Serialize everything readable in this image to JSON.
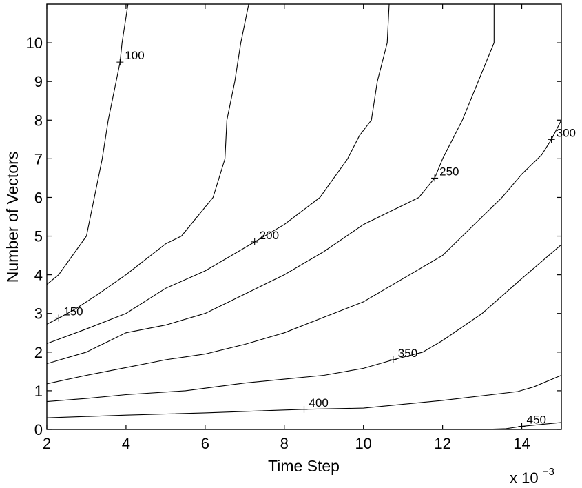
{
  "chart_data": {
    "type": "contour",
    "xlabel": "Time Step",
    "ylabel": "Number of Vectors",
    "x_multiplier_base": "x 10",
    "x_multiplier_exp": "−3",
    "xlim": [
      2,
      15
    ],
    "ylim": [
      0,
      11
    ],
    "xticks": [
      2,
      4,
      6,
      8,
      10,
      12,
      14
    ],
    "yticks": [
      0,
      1,
      2,
      3,
      4,
      5,
      6,
      7,
      8,
      9,
      10
    ],
    "grid": false,
    "contours": [
      {
        "level": 100,
        "label": "100",
        "label_at": [
          3.85,
          9.5
        ],
        "points": [
          [
            2,
            3.75
          ],
          [
            2.3,
            4.0
          ],
          [
            3.0,
            5.0
          ],
          [
            3.4,
            7.0
          ],
          [
            3.55,
            8.0
          ],
          [
            3.75,
            9.0
          ],
          [
            3.85,
            9.5
          ],
          [
            3.9,
            10.0
          ],
          [
            4.05,
            11.0
          ]
        ]
      },
      {
        "level": 150,
        "label": "150",
        "label_at": [
          2.3,
          2.88
        ],
        "points": [
          [
            2,
            2.72
          ],
          [
            2.3,
            2.88
          ],
          [
            2.7,
            3.1
          ],
          [
            3.3,
            3.5
          ],
          [
            4.0,
            4.0
          ],
          [
            5.0,
            4.8
          ],
          [
            5.4,
            5.0
          ],
          [
            6.2,
            6.0
          ],
          [
            6.5,
            7.0
          ],
          [
            6.55,
            8.0
          ],
          [
            6.75,
            9.0
          ],
          [
            6.9,
            10.0
          ],
          [
            7.1,
            11.0
          ]
        ]
      },
      {
        "level": 200,
        "label": "200",
        "label_at": [
          7.25,
          4.85
        ],
        "points": [
          [
            2,
            2.22
          ],
          [
            3.0,
            2.6
          ],
          [
            4.0,
            3.0
          ],
          [
            5.0,
            3.65
          ],
          [
            6.0,
            4.1
          ],
          [
            7.25,
            4.85
          ],
          [
            8.0,
            5.3
          ],
          [
            8.9,
            6.0
          ],
          [
            9.6,
            7.0
          ],
          [
            9.9,
            7.6
          ],
          [
            10.2,
            8.0
          ],
          [
            10.35,
            9.0
          ],
          [
            10.6,
            10.0
          ],
          [
            10.65,
            11.0
          ]
        ]
      },
      {
        "level": 250,
        "label": "250",
        "label_at": [
          11.8,
          6.5
        ],
        "points": [
          [
            2,
            1.7
          ],
          [
            3.0,
            2.0
          ],
          [
            4.0,
            2.5
          ],
          [
            5.0,
            2.7
          ],
          [
            6.0,
            3.0
          ],
          [
            7.0,
            3.5
          ],
          [
            8.0,
            4.0
          ],
          [
            9.0,
            4.6
          ],
          [
            10.0,
            5.3
          ],
          [
            11.4,
            6.0
          ],
          [
            11.8,
            6.5
          ],
          [
            12.0,
            7.0
          ],
          [
            12.5,
            8.0
          ],
          [
            13.3,
            10.0
          ],
          [
            13.3,
            11.0
          ]
        ]
      },
      {
        "level": 300,
        "label": "300",
        "label_at": [
          14.75,
          7.5
        ],
        "points": [
          [
            2,
            1.18
          ],
          [
            3.0,
            1.4
          ],
          [
            4.0,
            1.6
          ],
          [
            5.0,
            1.8
          ],
          [
            6.0,
            1.95
          ],
          [
            7.0,
            2.2
          ],
          [
            8.0,
            2.5
          ],
          [
            9.0,
            2.9
          ],
          [
            10.0,
            3.3
          ],
          [
            11.0,
            3.9
          ],
          [
            12.0,
            4.5
          ],
          [
            12.5,
            5.0
          ],
          [
            13.0,
            5.5
          ],
          [
            13.5,
            6.0
          ],
          [
            14.0,
            6.6
          ],
          [
            14.5,
            7.1
          ],
          [
            14.75,
            7.5
          ],
          [
            15.0,
            8.0
          ]
        ]
      },
      {
        "level": 350,
        "label": "350",
        "label_at": [
          10.75,
          1.8
        ],
        "points": [
          [
            2,
            0.72
          ],
          [
            3.0,
            0.8
          ],
          [
            4.0,
            0.9
          ],
          [
            5.5,
            1.0
          ],
          [
            7.0,
            1.2
          ],
          [
            8.0,
            1.3
          ],
          [
            9.0,
            1.4
          ],
          [
            10.0,
            1.58
          ],
          [
            10.75,
            1.8
          ],
          [
            11.5,
            2.0
          ],
          [
            12.0,
            2.3
          ],
          [
            13.0,
            3.0
          ],
          [
            14.0,
            3.9
          ],
          [
            15.0,
            4.78
          ]
        ]
      },
      {
        "level": 400,
        "label": "400",
        "label_at": [
          8.5,
          0.52
        ],
        "points": [
          [
            2,
            0.3
          ],
          [
            4.0,
            0.37
          ],
          [
            6.0,
            0.43
          ],
          [
            8.5,
            0.52
          ],
          [
            10.0,
            0.55
          ],
          [
            12.0,
            0.75
          ],
          [
            13.9,
            0.98
          ],
          [
            14.3,
            1.1
          ],
          [
            15.0,
            1.4
          ]
        ]
      },
      {
        "level": 450,
        "label": "450",
        "label_at": [
          14.0,
          0.08
        ],
        "points": [
          [
            13.0,
            0.0
          ],
          [
            13.6,
            0.02
          ],
          [
            14.0,
            0.08
          ],
          [
            14.5,
            0.13
          ],
          [
            15.0,
            0.18
          ]
        ]
      }
    ]
  }
}
